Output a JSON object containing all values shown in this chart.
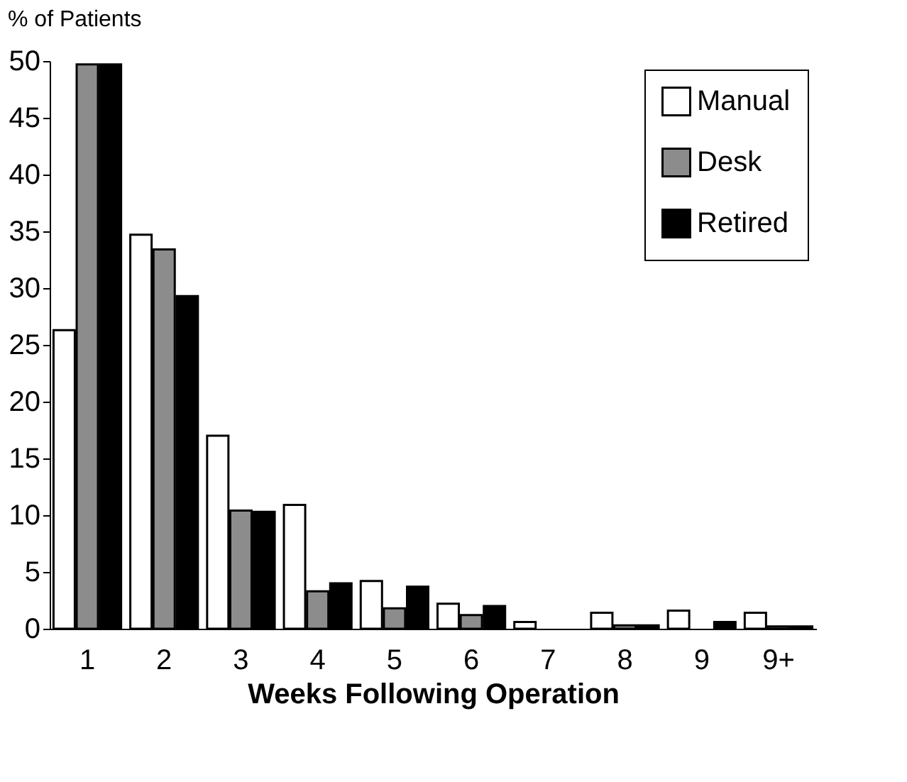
{
  "chart_data": {
    "type": "bar",
    "ylabel": "% of Patients",
    "xlabel": "Weeks Following Operation",
    "categories": [
      "1",
      "2",
      "3",
      "4",
      "5",
      "6",
      "7",
      "8",
      "9",
      "9+"
    ],
    "series": [
      {
        "name": "Manual",
        "color": "#ffffff",
        "values": [
          26.3,
          34.7,
          17,
          10.9,
          4.2,
          2.2,
          0.6,
          1.4,
          1.6,
          1.4
        ]
      },
      {
        "name": "Desk",
        "color": "#8c8c8c",
        "values": [
          49.7,
          33.4,
          10.4,
          3.3,
          1.8,
          1.2,
          null,
          0.3,
          null,
          0.2
        ]
      },
      {
        "name": "Retired",
        "color": "#000000",
        "values": [
          49.7,
          29.3,
          10.3,
          4.0,
          3.7,
          2.0,
          null,
          0.3,
          0.6,
          0.2
        ]
      }
    ],
    "ylim": [
      0,
      50
    ],
    "yticks": [
      0,
      5,
      10,
      15,
      20,
      25,
      30,
      35,
      40,
      45,
      50
    ],
    "grid": false,
    "legend": "top right"
  }
}
